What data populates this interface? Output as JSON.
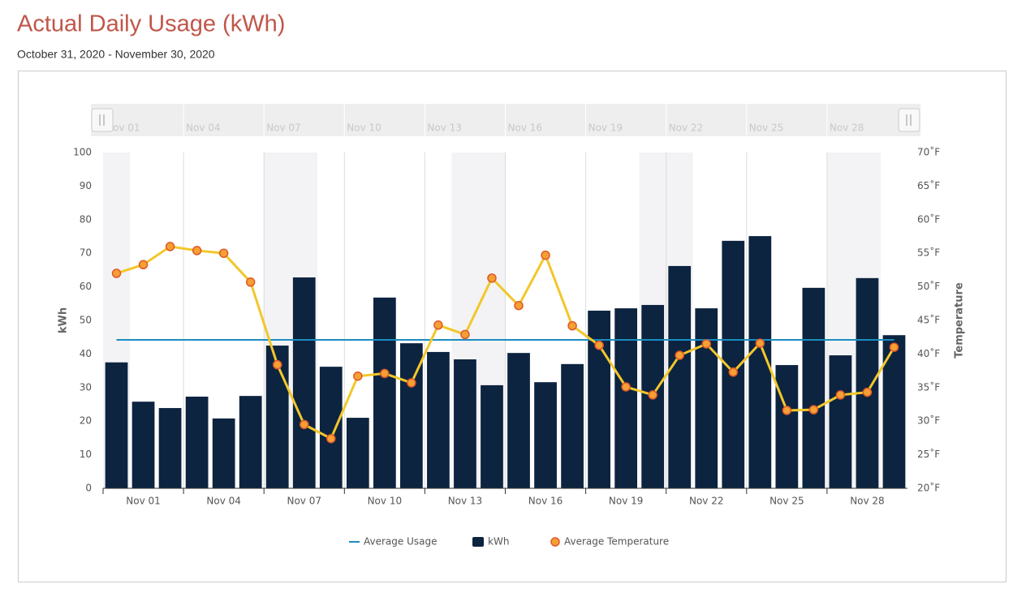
{
  "chart_data": {
    "type": "bar",
    "title": "Actual Daily Usage (kWh)",
    "subtitle": "October 31, 2020 - November 30, 2020",
    "ylabel": "kWh",
    "y2label": "Temperature",
    "categories": [
      null,
      "Nov 01",
      null,
      null,
      "Nov 04",
      null,
      null,
      "Nov 07",
      null,
      null,
      "Nov 10",
      null,
      null,
      "Nov 13",
      null,
      null,
      "Nov 16",
      null,
      null,
      "Nov 19",
      null,
      null,
      "Nov 22",
      null,
      null,
      "Nov 25",
      null,
      null,
      "Nov 28",
      null
    ],
    "series": [
      {
        "name": "kWh",
        "type": "bar",
        "color": "#0d2440",
        "values": [
          37.5,
          25.8,
          23.9,
          27.3,
          20.8,
          27.5,
          42.5,
          62.8,
          36.2,
          21,
          56.8,
          43.2,
          40.6,
          38.4,
          30.7,
          40.3,
          31.6,
          37,
          52.9,
          53.6,
          54.6,
          66.2,
          53.6,
          73.7,
          75.1,
          36.7,
          59.7,
          39.6,
          62.6,
          45.6
        ]
      },
      {
        "name": "Average Temperature",
        "type": "line",
        "axis": "y2",
        "color": "#f2c72b",
        "marker_color": "#f5a033",
        "marker_edge_color": "#e0572b",
        "values": [
          52.0,
          53.3,
          56.0,
          55.4,
          55.0,
          50.7,
          38.4,
          29.5,
          27.4,
          36.7,
          37.1,
          35.7,
          44.3,
          42.9,
          51.3,
          47.2,
          54.7,
          44.2,
          41.3,
          35.1,
          33.9,
          39.8,
          41.5,
          37.3,
          41.6,
          31.6,
          31.7,
          33.9,
          34.3,
          41.0
        ]
      }
    ],
    "reference_line": {
      "name": "Average Usage",
      "value": 44.2,
      "color": "#1a8dc0"
    },
    "ylim": [
      0,
      100
    ],
    "yticks": [
      0,
      10,
      20,
      30,
      40,
      50,
      60,
      70,
      80,
      90,
      100
    ],
    "y2lim": [
      20,
      70
    ],
    "y2ticks": [
      {
        "value": 20,
        "label": "20˚F"
      },
      {
        "value": 25,
        "label": "25˚F"
      },
      {
        "value": 30,
        "label": "30˚F"
      },
      {
        "value": 35,
        "label": "35˚F"
      },
      {
        "value": 40,
        "label": "40˚F"
      },
      {
        "value": 45,
        "label": "45˚F"
      },
      {
        "value": 50,
        "label": "50˚F"
      },
      {
        "value": 55,
        "label": "55˚F"
      },
      {
        "value": 60,
        "label": "60˚F"
      },
      {
        "value": 65,
        "label": "65˚F"
      },
      {
        "value": 70,
        "label": "70˚F"
      }
    ]
  }
}
